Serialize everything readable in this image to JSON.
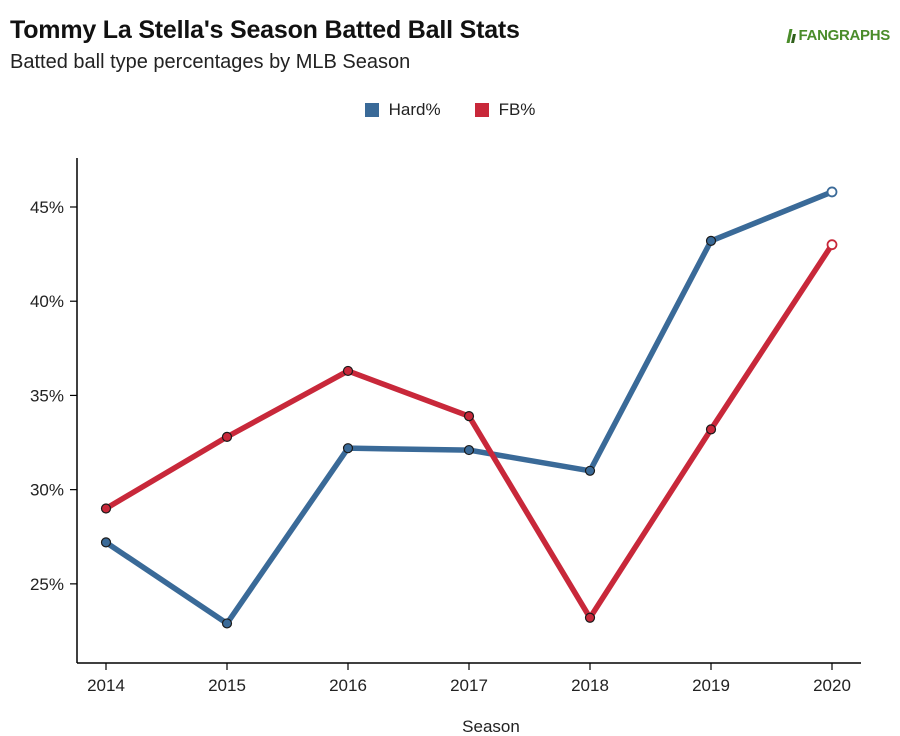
{
  "header": {
    "title": "Tommy La Stella's Season Batted Ball Stats",
    "subtitle": "Batted ball type percentages by MLB Season",
    "logo_text": "FANGRAPHS"
  },
  "chart_data": {
    "type": "line",
    "title": "Tommy La Stella's Season Batted Ball Stats",
    "subtitle": "Batted ball type percentages by MLB Season",
    "xlabel": "Season",
    "ylabel": "",
    "categories": [
      "2014",
      "2015",
      "2016",
      "2017",
      "2018",
      "2019",
      "2020"
    ],
    "ylim": [
      20.8,
      47.6
    ],
    "yticks": [
      25,
      30,
      35,
      40,
      45
    ],
    "ytick_labels": [
      "25%",
      "30%",
      "35%",
      "40%",
      "45%"
    ],
    "grid": false,
    "legend_position": "top-center",
    "series": [
      {
        "name": "Hard%",
        "color": "#3a6a98",
        "values": [
          27.2,
          22.9,
          32.2,
          32.1,
          31.0,
          43.2,
          45.8
        ],
        "last_point_hollow": true
      },
      {
        "name": "FB%",
        "color": "#c8283a",
        "values": [
          29.0,
          32.8,
          36.3,
          33.9,
          23.2,
          33.2,
          43.0
        ],
        "last_point_hollow": true
      }
    ]
  }
}
